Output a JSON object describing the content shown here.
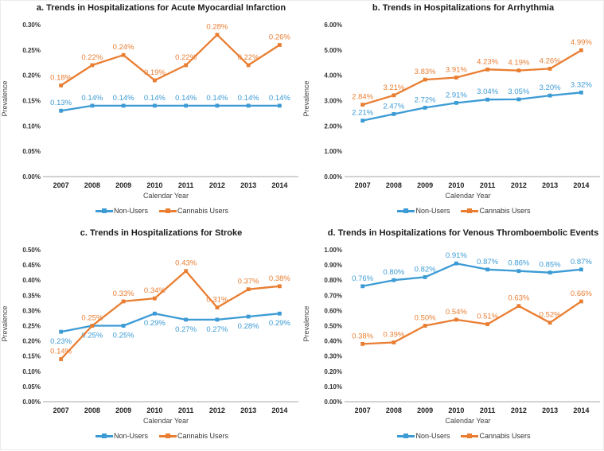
{
  "figure": {
    "background": "#ffffff",
    "axis_line_color": "#b7b7b7",
    "tick_text_color": "#333333",
    "title_text_color": "#1a1a1a",
    "axis_label_text_color": "#444444"
  },
  "chart_data": [
    {
      "id": "a",
      "type": "line",
      "title": "a. Trends in Hospitalizations for Acute Myocardial Infarction",
      "xlabel": "Calendar Year",
      "ylabel": "Prevalence",
      "categories": [
        "2007",
        "2008",
        "2009",
        "2010",
        "2011",
        "2012",
        "2013",
        "2014"
      ],
      "ylim": [
        0,
        0.3
      ],
      "yticks": [
        "0.00%",
        "0.05%",
        "0.10%",
        "0.15%",
        "0.20%",
        "0.25%",
        "0.30%"
      ],
      "grid": false,
      "legend_position": "bottom",
      "series": [
        {
          "name": "Non-Users",
          "color": "#3C9BD5",
          "labels_position": "above",
          "values": [
            0.13,
            0.14,
            0.14,
            0.14,
            0.14,
            0.14,
            0.14,
            0.14
          ],
          "labels": [
            "0.13%",
            "0.14%",
            "0.14%",
            "0.14%",
            "0.14%",
            "0.14%",
            "0.14%",
            "0.14%"
          ]
        },
        {
          "name": "Cannabis Users",
          "color": "#E97E32",
          "labels_position": "above",
          "values": [
            0.18,
            0.22,
            0.24,
            0.19,
            0.22,
            0.28,
            0.22,
            0.26
          ],
          "labels": [
            "0.18%",
            "0.22%",
            "0.24%",
            "0.19%",
            "0.22%",
            "0.28%",
            "0.22%",
            "0.26%"
          ]
        }
      ]
    },
    {
      "id": "b",
      "type": "line",
      "title": "b. Trends in Hospitalizations for Arrhythmia",
      "xlabel": "Calendar Year",
      "ylabel": "Prevalence",
      "categories": [
        "2007",
        "2008",
        "2009",
        "2010",
        "2011",
        "2012",
        "2013",
        "2014"
      ],
      "ylim": [
        0,
        6.0
      ],
      "yticks": [
        "0.00%",
        "1.00%",
        "2.00%",
        "3.00%",
        "4.00%",
        "5.00%",
        "6.00%"
      ],
      "grid": false,
      "legend_position": "bottom",
      "series": [
        {
          "name": "Non-Users",
          "color": "#3C9BD5",
          "labels_position": "above",
          "values": [
            2.21,
            2.47,
            2.72,
            2.91,
            3.04,
            3.05,
            3.2,
            3.32
          ],
          "labels": [
            "2.21%",
            "2.47%",
            "2.72%",
            "2.91%",
            "3.04%",
            "3.05%",
            "3.20%",
            "3.32%"
          ]
        },
        {
          "name": "Cannabis Users",
          "color": "#E97E32",
          "labels_position": "above",
          "values": [
            2.84,
            3.21,
            3.83,
            3.91,
            4.23,
            4.19,
            4.26,
            4.99
          ],
          "labels": [
            "2.84%",
            "3.21%",
            "3.83%",
            "3.91%",
            "4.23%",
            "4.19%",
            "4.26%",
            "4.99%"
          ]
        }
      ]
    },
    {
      "id": "c",
      "type": "line",
      "title": "c. Trends in Hospitalizations for Stroke",
      "xlabel": "Calendar Year",
      "ylabel": "Prevalence",
      "categories": [
        "2007",
        "2008",
        "2009",
        "2010",
        "2011",
        "2012",
        "2013",
        "2014"
      ],
      "ylim": [
        0,
        0.5
      ],
      "yticks": [
        "0.00%",
        "0.05%",
        "0.10%",
        "0.15%",
        "0.20%",
        "0.25%",
        "0.30%",
        "0.35%",
        "0.40%",
        "0.45%",
        "0.50%"
      ],
      "grid": false,
      "legend_position": "bottom",
      "series": [
        {
          "name": "Non-Users",
          "color": "#3C9BD5",
          "labels_position": "below",
          "values": [
            0.23,
            0.25,
            0.25,
            0.29,
            0.27,
            0.27,
            0.28,
            0.29
          ],
          "labels": [
            "0.23%",
            "0.25%",
            "0.25%",
            "0.29%",
            "0.27%",
            "0.27%",
            "0.28%",
            "0.29%"
          ]
        },
        {
          "name": "Cannabis Users",
          "color": "#E97E32",
          "labels_position": "above",
          "values": [
            0.14,
            0.25,
            0.33,
            0.34,
            0.43,
            0.31,
            0.37,
            0.38
          ],
          "labels": [
            "0.14%",
            "0.25%",
            "0.33%",
            "0.34%",
            "0.43%",
            "0.31%",
            "0.37%",
            "0.38%"
          ]
        }
      ]
    },
    {
      "id": "d",
      "type": "line",
      "title": "d. Trends in Hospitalizations for Venous Thromboembolic Events",
      "xlabel": "Calendar Year",
      "ylabel": "Prevalence",
      "categories": [
        "2007",
        "2008",
        "2009",
        "2010",
        "2011",
        "2012",
        "2013",
        "2014"
      ],
      "ylim": [
        0,
        1.0
      ],
      "yticks": [
        "0.00%",
        "0.10%",
        "0.20%",
        "0.30%",
        "0.40%",
        "0.50%",
        "0.60%",
        "0.70%",
        "0.80%",
        "0.90%",
        "1.00%"
      ],
      "grid": false,
      "legend_position": "bottom",
      "series": [
        {
          "name": "Non-Users",
          "color": "#3C9BD5",
          "labels_position": "above",
          "values": [
            0.76,
            0.8,
            0.82,
            0.91,
            0.87,
            0.86,
            0.85,
            0.87
          ],
          "labels": [
            "0.76%",
            "0.80%",
            "0.82%",
            "0.91%",
            "0.87%",
            "0.86%",
            "0.85%",
            "0.87%"
          ]
        },
        {
          "name": "Cannabis Users",
          "color": "#E97E32",
          "labels_position": "above",
          "values": [
            0.38,
            0.39,
            0.5,
            0.54,
            0.51,
            0.63,
            0.52,
            0.66
          ],
          "labels": [
            "0.38%",
            "0.39%",
            "0.50%",
            "0.54%",
            "0.51%",
            "0.63%",
            "0.52%",
            "0.66%"
          ]
        }
      ]
    }
  ]
}
